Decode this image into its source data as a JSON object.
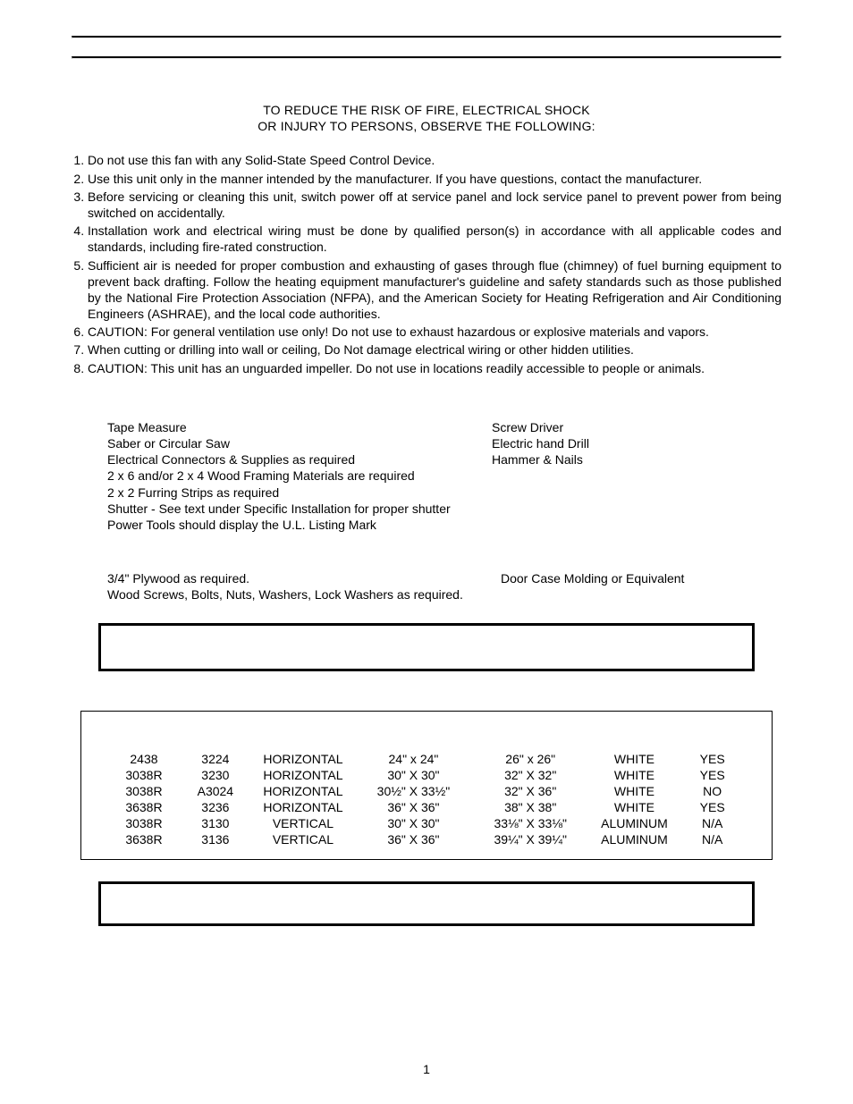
{
  "heading": {
    "line1": "TO REDUCE THE RISK OF FIRE, ELECTRICAL SHOCK",
    "line2": "OR INJURY TO PERSONS, OBSERVE THE FOLLOWING:"
  },
  "safety_items": [
    "Do not use this fan with any Solid-State Speed Control Device.",
    "Use this unit only in the manner intended by the manufacturer. If you have questions, contact the manufacturer.",
    "Before servicing or cleaning this unit, switch power off at service panel and lock service panel to prevent power from being switched on accidentally.",
    "Installation work and electrical wiring must be done by qualified person(s) in accordance with all applicable codes and standards, including fire-rated construction.",
    "Sufficient air is needed for proper combustion and exhausting of gases through flue (chimney) of fuel burning equipment to prevent back drafting. Follow the heating equipment manufacturer's guideline and safety standards such as those published by the National Fire Protection Association (NFPA), and the American Society for Heating Refrigeration and Air Conditioning Engineers (ASHRAE), and the local code authorities.",
    "CAUTION: For general ventilation use only! Do not use to exhaust hazardous or explosive materials and vapors.",
    "When cutting or drilling into wall or ceiling, Do Not damage electrical wiring or other hidden utilities.",
    "CAUTION: This unit has an unguarded impeller. Do not use in locations readily accessible to people or animals."
  ],
  "tools": {
    "left": [
      "Tape Measure",
      "Saber or Circular Saw",
      "Electrical Connectors & Supplies as required",
      "2 x 6 and/or 2 x 4 Wood Framing Materials are required",
      "2 x 2 Furring Strips as required",
      "Shutter - See text under Specific Installation for proper shutter",
      "Power Tools should display the U.L. Listing Mark"
    ],
    "right": [
      "Screw Driver",
      "Electric hand Drill",
      "Hammer & Nails"
    ]
  },
  "optional": {
    "left": [
      "3/4\" Plywood as required.",
      "Wood Screws, Bolts, Nuts, Washers, Lock Washers as required."
    ],
    "right": [
      "Door Case Molding or Equivalent"
    ]
  },
  "spec_table": {
    "rows": [
      {
        "c0": "2438",
        "c1": "3224",
        "c2": "HORIZONTAL",
        "c3": "24\" x 24\"",
        "c4": "26\" x 26\"",
        "c5": "WHITE",
        "c6": "YES"
      },
      {
        "c0": "3038R",
        "c1": "3230",
        "c2": "HORIZONTAL",
        "c3": "30\" X 30\"",
        "c4": "32\" X 32\"",
        "c5": "WHITE",
        "c6": "YES"
      },
      {
        "c0": "3038R",
        "c1": "A3024",
        "c2": "HORIZONTAL",
        "c3": "30½\" X 33½\"",
        "c4": "32\" X 36\"",
        "c5": "WHITE",
        "c6": "NO"
      },
      {
        "c0": "3638R",
        "c1": "3236",
        "c2": "HORIZONTAL",
        "c3": "36\" X 36\"",
        "c4": "38\" X 38\"",
        "c5": "WHITE",
        "c6": "YES"
      },
      {
        "c0": "3038R",
        "c1": "3130",
        "c2": "VERTICAL",
        "c3": "30\" X 30\"",
        "c4": "33⅛\" X 33⅛\"",
        "c5": "ALUMINUM",
        "c6": "N/A"
      },
      {
        "c0": "3638R",
        "c1": "3136",
        "c2": "VERTICAL",
        "c3": "36\" X 36\"",
        "c4": "39¼\" X 39¼\"",
        "c5": "ALUMINUM",
        "c6": "N/A"
      }
    ]
  },
  "page_number": "1"
}
